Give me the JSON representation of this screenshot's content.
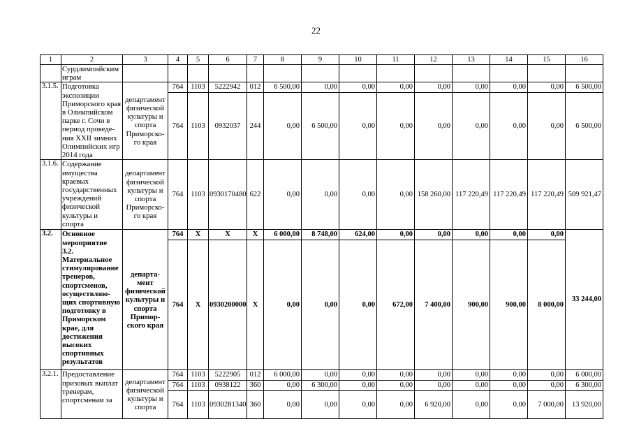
{
  "page": {
    "number": "22"
  },
  "table": {
    "header_cols": [
      "1",
      "2",
      "3",
      "4",
      "5",
      "6",
      "7",
      "8",
      "9",
      "10",
      "11",
      "12",
      "13",
      "14",
      "15",
      "16"
    ],
    "groups": [
      {
        "num": "",
        "name": "Сурдлимпийским\nиграм",
        "dept": "",
        "bold": false,
        "lines": [
          {
            "cells": [
              "",
              "",
              "",
              "",
              "",
              "",
              "",
              "",
              "",
              "",
              "",
              "",
              ""
            ]
          }
        ]
      },
      {
        "num": "3.1.5.",
        "name": "Подготовка\nэкспозиции\nПриморского края\nв Олимпийском\nпарке г. Сочи в\nпериод проведе-\nния XXII зимних\nОлимпийских игр\n2014 года",
        "dept": "департамент\nфизической\nкультуры и\nспорта\nПриморско-\nго края",
        "bold": false,
        "lines": [
          {
            "cells": [
              "764",
              "1103",
              "5222942",
              "012",
              "6 500,00",
              "0,00",
              "0,00",
              "0,00",
              "0,00",
              "0,00",
              "0,00",
              "0,00",
              "6 500,00"
            ]
          },
          {
            "cells": [
              "764",
              "1103",
              "0932037",
              "244",
              "0,00",
              "6 500,00",
              "0,00",
              "0,00",
              "0,00",
              "0,00",
              "0,00",
              "0,00",
              "6 500,00"
            ]
          }
        ]
      },
      {
        "num": "3.1.6.",
        "name": "Содержание\nимущества\nкраевых\nгосударственных\nучреждений\nфизической\nкультуры и\nспорта",
        "dept": "департамент\nфизической\nкультуры и\nспорта\nПриморско-\nго края",
        "bold": false,
        "lines": [
          {
            "cells": [
              "764",
              "1103",
              "0930170480",
              "622",
              "0,00",
              "0,00",
              "0,00",
              "0,00",
              "158 260,00",
              "117 220,49",
              "117 220,49",
              "117 220,49",
              "509 921,47"
            ]
          }
        ]
      },
      {
        "num": "3.2.",
        "name": "Основное\nмероприятие\n3.2.\nМатериальное\nстимулирование\nтренеров,\nспортсменов,\nосуществляю-\nщих спортивную\nподготовку в\nПриморском\nкрае, для\nдостижения\nвысоких\nспортивных\nрезультатов",
        "dept": "департа-\nмент\nфизической\nкультуры и\nспорта\nПримор-\nского края",
        "bold": true,
        "total": "33 244,00",
        "lines": [
          {
            "cells": [
              "764",
              "X",
              "X",
              "X",
              "6 000,00",
              "8 748,00",
              "624,00",
              "0,00",
              "0,00",
              "0,00",
              "0,00",
              "0,00"
            ]
          },
          {
            "cells": [
              "764",
              "X",
              "0930200000",
              "X",
              "0,00",
              "0,00",
              "0,00",
              "672,00",
              "7 400,00",
              "900,00",
              "900,00",
              "8 000,00"
            ]
          }
        ]
      },
      {
        "num": "3.2.1.",
        "name": "Предоставление\nпризовых выплат\nтренерам,\nспортсменам за",
        "dept": "департамент\nфизической\nкультуры и\nспорта",
        "bold": false,
        "lines": [
          {
            "cells": [
              "764",
              "1103",
              "5222905",
              "012",
              "6 000,00",
              "0,00",
              "0,00",
              "0,00",
              "0,00",
              "0,00",
              "0,00",
              "0,00",
              "6 000,00"
            ]
          },
          {
            "cells": [
              "764",
              "1103",
              "0938122",
              "360",
              "0,00",
              "6 300,00",
              "0,00",
              "0,00",
              "0,00",
              "0,00",
              "0,00",
              "0,00",
              "6 300,00"
            ]
          },
          {
            "cells": [
              "764",
              "1103",
              "0930281340",
              "360",
              "0,00",
              "0,00",
              "0,00",
              "0,00",
              "6 920,00",
              "0,00",
              "0,00",
              "7 000,00",
              "13 920,00"
            ]
          }
        ]
      }
    ]
  }
}
